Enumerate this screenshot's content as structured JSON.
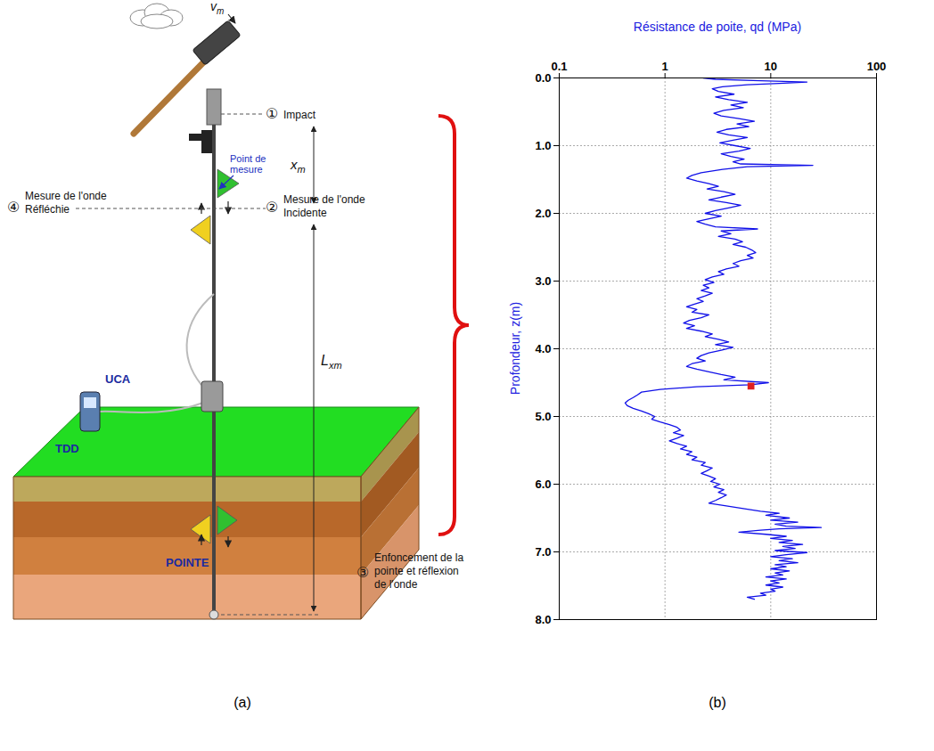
{
  "diagram": {
    "velocity": {
      "base": "v",
      "sub": "m"
    },
    "steps": [
      {
        "num": "①",
        "text": [
          "Impact"
        ]
      },
      {
        "num": "②",
        "text": [
          "Mesure de l'onde",
          "Incidente"
        ]
      },
      {
        "num": "③",
        "text": [
          "Enfoncement de la",
          "pointe et réflexion",
          "de l'onde"
        ]
      },
      {
        "num": "④",
        "text": [
          "Mesure de l'onde",
          "Réfléchie"
        ]
      }
    ],
    "measure_point": [
      "Point de",
      "mesure"
    ],
    "xm": {
      "base": "x",
      "sub": "m"
    },
    "lxm": {
      "base": "L",
      "sub": "xm"
    },
    "devices": [
      "UCA",
      "TDD"
    ],
    "tip": "POINTE"
  },
  "captions": [
    "(a)",
    "(b)"
  ],
  "chart_data": {
    "type": "line",
    "x_label": "Résistance de poite, qd (MPa)",
    "y_label": "Profondeur, z(m)",
    "log": "x",
    "grid": true,
    "xlim": [
      0.1,
      100
    ],
    "xticks": [
      0.1,
      1,
      10,
      100
    ],
    "ylim": [
      0,
      8
    ],
    "yticks": [
      {
        "value": 0,
        "label": "0.0"
      },
      {
        "value": 1,
        "label": "1.0"
      },
      {
        "value": 2,
        "label": "2.0"
      },
      {
        "value": 3,
        "label": "3.0"
      },
      {
        "value": 4,
        "label": "4.0"
      },
      {
        "value": 5,
        "label": "5.0"
      },
      {
        "value": 6,
        "label": "6.0"
      },
      {
        "value": 7,
        "label": "7.0"
      },
      {
        "value": 8,
        "label": "8.0"
      }
    ],
    "series": [
      {
        "color": "#1010e8",
        "line_style": "solid",
        "points": [
          [
            0.0,
            2.3
          ],
          [
            0.02,
            3.0
          ],
          [
            0.04,
            8.0
          ],
          [
            0.06,
            22
          ],
          [
            0.08,
            12
          ],
          [
            0.1,
            6
          ],
          [
            0.13,
            3.5
          ],
          [
            0.16,
            2.8
          ],
          [
            0.2,
            3.2
          ],
          [
            0.24,
            4.5
          ],
          [
            0.28,
            3.0
          ],
          [
            0.32,
            4.0
          ],
          [
            0.36,
            6.0
          ],
          [
            0.4,
            4.2
          ],
          [
            0.44,
            5.5
          ],
          [
            0.48,
            3.6
          ],
          [
            0.52,
            2.9
          ],
          [
            0.56,
            3.4
          ],
          [
            0.6,
            5.0
          ],
          [
            0.64,
            7.0
          ],
          [
            0.68,
            4.8
          ],
          [
            0.72,
            6.2
          ],
          [
            0.76,
            3.8
          ],
          [
            0.8,
            3.1
          ],
          [
            0.84,
            4.0
          ],
          [
            0.88,
            6.0
          ],
          [
            0.92,
            4.4
          ],
          [
            0.96,
            3.3
          ],
          [
            1.0,
            4.6
          ],
          [
            1.04,
            6.4
          ],
          [
            1.08,
            5.0
          ],
          [
            1.12,
            3.4
          ],
          [
            1.16,
            4.2
          ],
          [
            1.2,
            5.6
          ],
          [
            1.24,
            4.4
          ],
          [
            1.27,
            5.2
          ],
          [
            1.29,
            25
          ],
          [
            1.31,
            6.0
          ],
          [
            1.35,
            3.5
          ],
          [
            1.4,
            2.2
          ],
          [
            1.44,
            1.8
          ],
          [
            1.48,
            1.6
          ],
          [
            1.52,
            2.0
          ],
          [
            1.56,
            2.6
          ],
          [
            1.6,
            3.2
          ],
          [
            1.64,
            2.5
          ],
          [
            1.68,
            3.6
          ],
          [
            1.72,
            4.6
          ],
          [
            1.76,
            3.4
          ],
          [
            1.8,
            2.6
          ],
          [
            1.84,
            3.8
          ],
          [
            1.88,
            5.2
          ],
          [
            1.92,
            4.0
          ],
          [
            1.96,
            3.0
          ],
          [
            2.0,
            2.4
          ],
          [
            2.04,
            3.4
          ],
          [
            2.08,
            2.6
          ],
          [
            2.12,
            2.0
          ],
          [
            2.16,
            2.4
          ],
          [
            2.2,
            3.0
          ],
          [
            2.23,
            7.5
          ],
          [
            2.26,
            3.4
          ],
          [
            2.3,
            4.2
          ],
          [
            2.34,
            3.2
          ],
          [
            2.38,
            4.6
          ],
          [
            2.42,
            5.4
          ],
          [
            2.46,
            4.4
          ],
          [
            2.5,
            5.8
          ],
          [
            2.54,
            6.6
          ],
          [
            2.58,
            7.2
          ],
          [
            2.62,
            6.0
          ],
          [
            2.66,
            6.8
          ],
          [
            2.7,
            5.2
          ],
          [
            2.74,
            4.4
          ],
          [
            2.78,
            5.0
          ],
          [
            2.82,
            3.8
          ],
          [
            2.86,
            3.2
          ],
          [
            2.9,
            3.6
          ],
          [
            2.94,
            2.8
          ],
          [
            2.98,
            2.4
          ],
          [
            3.02,
            2.9
          ],
          [
            3.06,
            2.3
          ],
          [
            3.1,
            2.6
          ],
          [
            3.14,
            2.2
          ],
          [
            3.18,
            2.8
          ],
          [
            3.22,
            2.4
          ],
          [
            3.26,
            2.0
          ],
          [
            3.3,
            2.3
          ],
          [
            3.34,
            1.9
          ],
          [
            3.38,
            1.6
          ],
          [
            3.42,
            2.0
          ],
          [
            3.46,
            1.8
          ],
          [
            3.5,
            2.6
          ],
          [
            3.54,
            2.2
          ],
          [
            3.58,
            1.7
          ],
          [
            3.62,
            1.5
          ],
          [
            3.66,
            1.9
          ],
          [
            3.7,
            1.6
          ],
          [
            3.74,
            2.2
          ],
          [
            3.78,
            2.8
          ],
          [
            3.82,
            2.4
          ],
          [
            3.86,
            3.2
          ],
          [
            3.9,
            4.0
          ],
          [
            3.94,
            3.0
          ],
          [
            3.98,
            4.4
          ],
          [
            4.02,
            3.4
          ],
          [
            4.06,
            2.6
          ],
          [
            4.1,
            2.2
          ],
          [
            4.14,
            2.0
          ],
          [
            4.18,
            2.4
          ],
          [
            4.22,
            1.8
          ],
          [
            4.26,
            1.6
          ],
          [
            4.3,
            2.0
          ],
          [
            4.34,
            2.6
          ],
          [
            4.38,
            3.4
          ],
          [
            4.42,
            4.6
          ],
          [
            4.46,
            3.6
          ],
          [
            4.5,
            9.5
          ],
          [
            4.53,
            6.5
          ],
          [
            4.56,
            2.0
          ],
          [
            4.6,
            0.9
          ],
          [
            4.64,
            0.6
          ],
          [
            4.68,
            0.55
          ],
          [
            4.72,
            0.5
          ],
          [
            4.76,
            0.45
          ],
          [
            4.8,
            0.42
          ],
          [
            4.84,
            0.44
          ],
          [
            4.88,
            0.5
          ],
          [
            4.92,
            0.6
          ],
          [
            4.96,
            0.7
          ],
          [
            5.0,
            0.8
          ],
          [
            5.04,
            0.75
          ],
          [
            5.08,
            0.9
          ],
          [
            5.12,
            1.1
          ],
          [
            5.16,
            1.3
          ],
          [
            5.2,
            1.4
          ],
          [
            5.24,
            1.2
          ],
          [
            5.28,
            1.5
          ],
          [
            5.32,
            1.3
          ],
          [
            5.36,
            1.1
          ],
          [
            5.4,
            1.3
          ],
          [
            5.44,
            1.6
          ],
          [
            5.48,
            1.4
          ],
          [
            5.52,
            1.8
          ],
          [
            5.56,
            1.6
          ],
          [
            5.6,
            2.0
          ],
          [
            5.64,
            1.8
          ],
          [
            5.68,
            2.4
          ],
          [
            5.72,
            2.2
          ],
          [
            5.76,
            2.8
          ],
          [
            5.8,
            2.5
          ],
          [
            5.84,
            2.2
          ],
          [
            5.88,
            2.6
          ],
          [
            5.92,
            3.0
          ],
          [
            5.96,
            2.7
          ],
          [
            6.0,
            3.3
          ],
          [
            6.04,
            2.9
          ],
          [
            6.08,
            3.6
          ],
          [
            6.12,
            3.2
          ],
          [
            6.16,
            3.8
          ],
          [
            6.2,
            3.4
          ],
          [
            6.24,
            3.0
          ],
          [
            6.28,
            2.6
          ],
          [
            6.32,
            3.8
          ],
          [
            6.36,
            5.5
          ],
          [
            6.4,
            8
          ],
          [
            6.43,
            12
          ],
          [
            6.46,
            9
          ],
          [
            6.5,
            15
          ],
          [
            6.53,
            10
          ],
          [
            6.56,
            18
          ],
          [
            6.59,
            11
          ],
          [
            6.62,
            14
          ],
          [
            6.64,
            30
          ],
          [
            6.66,
            12
          ],
          [
            6.68,
            8
          ],
          [
            6.71,
            5
          ],
          [
            6.74,
            9
          ],
          [
            6.77,
            14
          ],
          [
            6.8,
            10
          ],
          [
            6.83,
            16
          ],
          [
            6.86,
            12
          ],
          [
            6.89,
            20
          ],
          [
            6.92,
            13
          ],
          [
            6.95,
            17
          ],
          [
            6.98,
            11
          ],
          [
            7.01,
            22
          ],
          [
            7.04,
            14
          ],
          [
            7.07,
            10
          ],
          [
            7.1,
            16
          ],
          [
            7.13,
            12
          ],
          [
            7.16,
            18
          ],
          [
            7.19,
            11
          ],
          [
            7.22,
            14
          ],
          [
            7.25,
            10
          ],
          [
            7.28,
            15
          ],
          [
            7.31,
            11
          ],
          [
            7.34,
            13
          ],
          [
            7.37,
            9
          ],
          [
            7.4,
            14
          ],
          [
            7.43,
            10
          ],
          [
            7.46,
            12
          ],
          [
            7.49,
            9
          ],
          [
            7.52,
            13
          ],
          [
            7.55,
            10
          ],
          [
            7.58,
            11
          ],
          [
            7.61,
            8
          ],
          [
            7.64,
            9
          ],
          [
            7.67,
            6
          ],
          [
            7.7,
            7
          ]
        ]
      }
    ],
    "highlight": {
      "points": [
        [
          4.55,
          6.5
        ]
      ],
      "color": "#e02020",
      "marker": "square"
    }
  }
}
